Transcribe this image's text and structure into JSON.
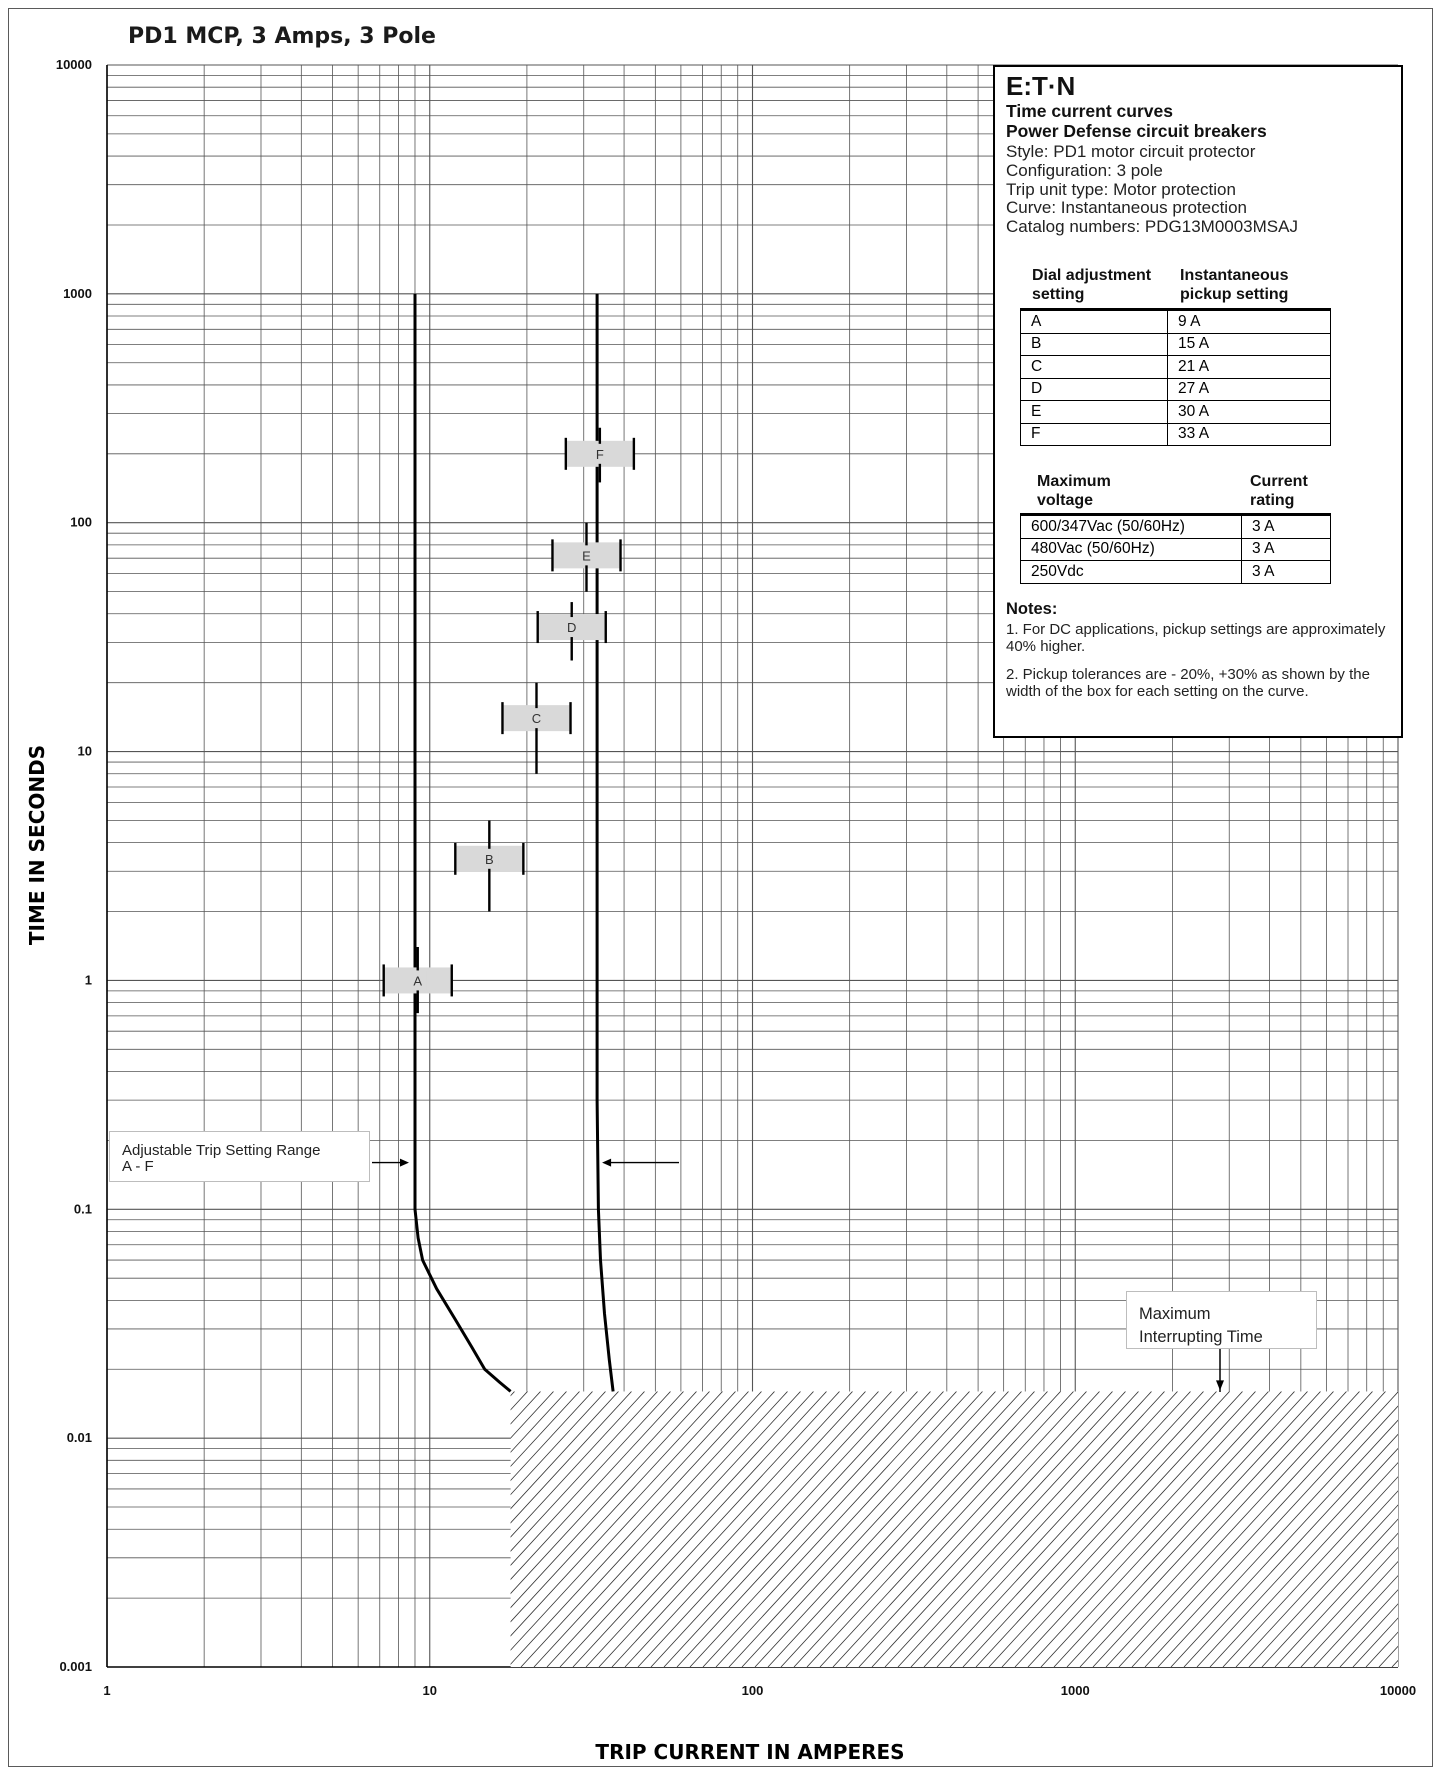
{
  "chart_data": {
    "type": "line",
    "title": "PD1 MCP, 3 Amps, 3 Pole",
    "xlabel": "TRIP CURRENT IN AMPERES",
    "ylabel": "TIME IN SECONDS",
    "xscale": "log",
    "yscale": "log",
    "xlim": [
      1,
      10000
    ],
    "ylim": [
      0.001,
      10000
    ],
    "x_ticks": [
      "1",
      "10",
      "100",
      "1000",
      "10000"
    ],
    "y_ticks": [
      "0.001",
      "0.01",
      "0.1",
      "1",
      "10",
      "100",
      "1000",
      "10000"
    ],
    "grid": true,
    "series": [
      {
        "points": [
          [
            9.0,
            1000
          ],
          [
            9.0,
            0.2
          ],
          [
            9.0,
            0.1
          ],
          [
            9.2,
            0.075
          ],
          [
            9.5,
            0.06
          ],
          [
            10.5,
            0.045
          ],
          [
            12,
            0.033
          ],
          [
            13.5,
            0.025
          ],
          [
            14.8,
            0.02
          ],
          [
            16.5,
            0.0175
          ],
          [
            17.8,
            0.016
          ]
        ]
      },
      {
        "points": [
          [
            33,
            1000
          ],
          [
            33,
            0.3
          ],
          [
            33.3,
            0.1
          ],
          [
            33.8,
            0.06
          ],
          [
            34.8,
            0.035
          ],
          [
            36.0,
            0.022
          ],
          [
            37.0,
            0.016
          ]
        ]
      }
    ],
    "setting_boxes": [
      {
        "label": "A",
        "x_low": 7.2,
        "x_high": 11.7,
        "y": 1.0,
        "y_min": 0.72,
        "y_max": 1.4
      },
      {
        "label": "B",
        "x_low": 12,
        "x_high": 19.5,
        "y": 3.4,
        "y_min": 2.0,
        "y_max": 5.0
      },
      {
        "label": "C",
        "x_low": 16.8,
        "x_high": 27.3,
        "y": 14.0,
        "y_min": 8.0,
        "y_max": 20.0
      },
      {
        "label": "D",
        "x_low": 21.6,
        "x_high": 35.1,
        "y": 35.0,
        "y_min": 25.0,
        "y_max": 45.0
      },
      {
        "label": "E",
        "x_low": 24,
        "x_high": 39,
        "y": 72.0,
        "y_min": 50.0,
        "y_max": 100.0
      },
      {
        "label": "F",
        "x_low": 26.4,
        "x_high": 42.9,
        "y": 200.0,
        "y_min": 150.0,
        "y_max": 260.0
      }
    ],
    "max_interrupting_time_region": {
      "x_from": 17.8,
      "x_to": 10000,
      "y_from": 0.001,
      "y_to": 0.016
    }
  },
  "info_box": {
    "logo": "E:T·N",
    "heading1": "Time current curves",
    "heading2": "Power Defense circuit breakers",
    "style": "Style: PD1 motor circuit protector",
    "configuration": "Configuration: 3 pole",
    "trip_unit": "Trip unit type: Motor protection",
    "curve": "Curve: Instantaneous protection",
    "catalog": "Catalog numbers: PDG13M0003MSAJ",
    "settings_table": {
      "header_setting": "Dial adjustment setting",
      "header_pickup": "Instantaneous pickup setting",
      "rows": [
        {
          "setting": "A",
          "pickup": "9 A"
        },
        {
          "setting": "B",
          "pickup": "15 A"
        },
        {
          "setting": "C",
          "pickup": "21 A"
        },
        {
          "setting": "D",
          "pickup": "27 A"
        },
        {
          "setting": "E",
          "pickup": "30 A"
        },
        {
          "setting": "F",
          "pickup": "33 A"
        }
      ]
    },
    "voltage_table": {
      "header_voltage": "Maximum voltage",
      "header_rating": "Current rating",
      "rows": [
        {
          "voltage": "600/347Vac (50/60Hz)",
          "rating": "3 A"
        },
        {
          "voltage": "480Vac (50/60Hz)",
          "rating": "3 A"
        },
        {
          "voltage": "250Vdc",
          "rating": "3 A"
        }
      ]
    },
    "notes_title": "Notes:",
    "notes": [
      "1.  For DC applications, pickup settings are approximately 40% higher.",
      "2.  Pickup tolerances are - 20%, +30% as shown by the width of the box for each setting on the curve."
    ]
  },
  "callouts": {
    "range_line1": "Adjustable Trip Setting Range",
    "range_line2": "A - F",
    "max_line1": "Maximum",
    "max_line2": "Interrupting Time"
  },
  "colors": {
    "grid": "#555555",
    "curve": "#000000",
    "box_fill": "#d9d9d9"
  }
}
